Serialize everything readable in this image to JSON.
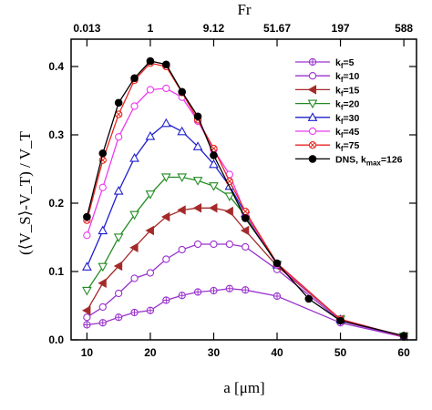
{
  "chart_data": {
    "type": "line",
    "xlabel": "a [μm]",
    "ylabel": "(⟨V_S⟩-V_T) / V_T",
    "top_axis_label": "Fr",
    "xlim": [
      7.5,
      62
    ],
    "ylim": [
      0,
      0.44
    ],
    "x_ticks": [
      10,
      20,
      30,
      40,
      50,
      60
    ],
    "y_ticks": [
      0.0,
      0.1,
      0.2,
      0.3,
      0.4
    ],
    "top_ticks": [
      {
        "x": 10,
        "label": "0.013"
      },
      {
        "x": 20,
        "label": "1"
      },
      {
        "x": 30,
        "label": "9.12"
      },
      {
        "x": 40,
        "label": "51.67"
      },
      {
        "x": 50,
        "label": "197"
      },
      {
        "x": 60,
        "label": "588"
      }
    ],
    "legend_position": "top-right",
    "grid": false,
    "series": [
      {
        "name": "k_f=5",
        "base": "k",
        "sub": "f",
        "suffix": "=5",
        "color": "#9a32cd",
        "marker": "circle-cross",
        "x": [
          10,
          12.5,
          15,
          17.5,
          20,
          22.5,
          25,
          27.5,
          30,
          32.5,
          35,
          40,
          50,
          60
        ],
        "y": [
          0.022,
          0.025,
          0.033,
          0.04,
          0.043,
          0.058,
          0.065,
          0.07,
          0.072,
          0.075,
          0.073,
          0.064,
          0.025,
          0.004
        ]
      },
      {
        "name": "k_f=10",
        "base": "k",
        "sub": "f",
        "suffix": "=10",
        "color": "#9a32cd",
        "marker": "circle",
        "x": [
          10,
          12.5,
          15,
          17.5,
          20,
          22.5,
          25,
          27.5,
          30,
          32.5,
          35,
          40,
          50,
          60
        ],
        "y": [
          0.033,
          0.048,
          0.068,
          0.09,
          0.098,
          0.118,
          0.132,
          0.14,
          0.14,
          0.14,
          0.136,
          0.103,
          0.028,
          0.004
        ]
      },
      {
        "name": "k_f=15",
        "base": "k",
        "sub": "f",
        "suffix": "=15",
        "color": "#a52a2a",
        "marker": "triangle-left",
        "x": [
          10,
          12.5,
          15,
          17.5,
          20,
          22.5,
          25,
          27.5,
          30,
          32.5,
          35,
          40,
          50,
          60
        ],
        "y": [
          0.043,
          0.083,
          0.108,
          0.135,
          0.16,
          0.18,
          0.19,
          0.193,
          0.193,
          0.188,
          0.16,
          0.108,
          0.03,
          0.005
        ]
      },
      {
        "name": "k_f=20",
        "base": "k",
        "sub": "f",
        "suffix": "=20",
        "color": "#228b22",
        "marker": "triangle-down",
        "x": [
          10,
          12.5,
          15,
          17.5,
          20,
          22.5,
          25,
          27.5,
          30,
          32.5,
          35,
          40,
          50,
          60
        ],
        "y": [
          0.072,
          0.107,
          0.15,
          0.183,
          0.213,
          0.238,
          0.238,
          0.233,
          0.225,
          0.21,
          0.182,
          0.11,
          0.03,
          0.005
        ]
      },
      {
        "name": "k_f=30",
        "base": "k",
        "sub": "f",
        "suffix": "=30",
        "color": "#1e1ecd",
        "marker": "triangle-up",
        "x": [
          10,
          12.5,
          15,
          17.5,
          20,
          22.5,
          25,
          27.5,
          30,
          32.5,
          35,
          40,
          50,
          60
        ],
        "y": [
          0.107,
          0.16,
          0.218,
          0.266,
          0.298,
          0.317,
          0.305,
          0.283,
          0.257,
          0.225,
          0.185,
          0.11,
          0.03,
          0.005
        ]
      },
      {
        "name": "k_f=45",
        "base": "k",
        "sub": "f",
        "suffix": "=45",
        "color": "#ee3bee",
        "marker": "circle",
        "x": [
          10,
          12.5,
          15,
          17.5,
          20,
          22.5,
          25,
          27.5,
          30,
          32.5,
          35,
          40,
          50,
          60
        ],
        "y": [
          0.153,
          0.223,
          0.297,
          0.342,
          0.366,
          0.368,
          0.355,
          0.32,
          0.278,
          0.242,
          0.185,
          0.11,
          0.03,
          0.005
        ]
      },
      {
        "name": "k_f=75",
        "base": "k",
        "sub": "f",
        "suffix": "=75",
        "color": "#e8251f",
        "marker": "circle-x",
        "x": [
          10,
          12.5,
          15,
          17.5,
          20,
          22.5,
          25,
          27.5,
          30,
          32.5,
          35,
          40,
          50,
          60
        ],
        "y": [
          0.175,
          0.263,
          0.33,
          0.38,
          0.405,
          0.4,
          0.362,
          0.322,
          0.28,
          0.232,
          0.188,
          0.112,
          0.03,
          0.005
        ]
      },
      {
        "name": "DNS, k_max=126",
        "base": "DNS, k",
        "sub": "max",
        "suffix": "=126",
        "color": "#000000",
        "marker": "filled-circle",
        "x": [
          10,
          12.5,
          15,
          17.5,
          20,
          22.5,
          25,
          27.5,
          30,
          35,
          40,
          45,
          50,
          60
        ],
        "y": [
          0.18,
          0.273,
          0.347,
          0.383,
          0.408,
          0.403,
          0.363,
          0.327,
          0.27,
          0.178,
          0.112,
          0.06,
          0.028,
          0.006
        ]
      }
    ]
  }
}
